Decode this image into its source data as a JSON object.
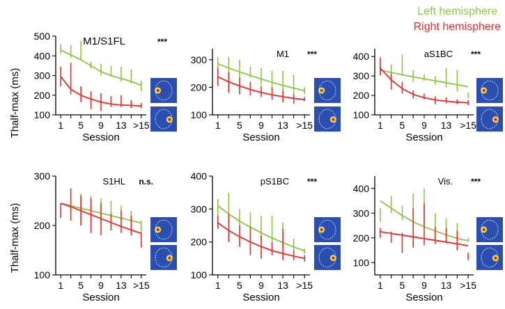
{
  "legend": [
    {
      "label": "Left hemisphere",
      "color": "#8cc63f"
    },
    {
      "label": "Right hemisphere",
      "color": "#ee2a2a"
    }
  ],
  "colors": {
    "left": "#8cc63f",
    "right": "#ee2a2a",
    "map_bg": "#2a4fb0"
  },
  "ylabel": "Thalf-max (ms)",
  "xlabel": "Session",
  "xtick_labels": [
    "1",
    "5",
    "9",
    "13",
    ">15"
  ],
  "chart_data": [
    {
      "type": "line",
      "title": "M1/S1FL",
      "significance": "***",
      "ylim": [
        100,
        500
      ],
      "yticks": [
        100,
        200,
        300,
        400,
        500
      ],
      "x": [
        1,
        3,
        5,
        7,
        9,
        11,
        13,
        15,
        17
      ],
      "series": [
        {
          "name": "Left hemisphere",
          "fit": [
            430,
            405,
            380,
            350,
            320,
            300,
            285,
            270,
            250
          ],
          "errbars": [
            [
              1,
              410,
              460
            ],
            [
              3,
              390,
              455
            ],
            [
              5,
              380,
              475
            ],
            [
              7,
              335,
              370
            ],
            [
              9,
              300,
              360
            ],
            [
              11,
              295,
              350
            ],
            [
              13,
              270,
              345
            ],
            [
              15,
              260,
              330
            ],
            [
              17,
              220,
              275
            ]
          ]
        },
        {
          "name": "Right hemisphere",
          "fit": [
            295,
            230,
            200,
            180,
            165,
            155,
            150,
            148,
            145
          ],
          "errbars": [
            [
              1,
              245,
              345
            ],
            [
              3,
              205,
              365
            ],
            [
              5,
              165,
              245
            ],
            [
              7,
              130,
              220
            ],
            [
              9,
              120,
              210
            ],
            [
              11,
              140,
              195
            ],
            [
              13,
              140,
              200
            ],
            [
              15,
              135,
              175
            ],
            [
              17,
              135,
              160
            ]
          ]
        }
      ]
    },
    {
      "type": "line",
      "title": "M1",
      "significance": "***",
      "ylim": [
        100,
        340
      ],
      "yticks": [
        100,
        200,
        300
      ],
      "x": [
        1,
        3,
        5,
        7,
        9,
        11,
        13,
        15,
        17
      ],
      "series": [
        {
          "name": "Left hemisphere",
          "fit": [
            285,
            270,
            256,
            243,
            230,
            218,
            207,
            197,
            188
          ],
          "errbars": [
            [
              1,
              260,
              310
            ],
            [
              3,
              255,
              310
            ],
            [
              5,
              230,
              300
            ],
            [
              7,
              235,
              275
            ],
            [
              9,
              210,
              270
            ],
            [
              11,
              190,
              260
            ],
            [
              13,
              185,
              260
            ],
            [
              15,
              170,
              245
            ],
            [
              17,
              175,
              200
            ]
          ]
        },
        {
          "name": "Right hemisphere",
          "fit": [
            238,
            220,
            205,
            192,
            181,
            173,
            166,
            160,
            155
          ],
          "errbars": [
            [
              1,
              205,
              270
            ],
            [
              3,
              180,
              255
            ],
            [
              5,
              175,
              235
            ],
            [
              7,
              170,
              220
            ],
            [
              9,
              165,
              205
            ],
            [
              11,
              155,
              200
            ],
            [
              13,
              145,
              190
            ],
            [
              15,
              140,
              175
            ],
            [
              17,
              150,
              165
            ]
          ]
        }
      ]
    },
    {
      "type": "line",
      "title": "aS1BC",
      "significance": "***",
      "ylim": [
        100,
        440
      ],
      "yticks": [
        100,
        200,
        300,
        400
      ],
      "x": [
        1,
        3,
        5,
        7,
        9,
        11,
        13,
        15,
        17
      ],
      "series": [
        {
          "name": "Left hemisphere",
          "fit": [
            330,
            318,
            306,
            295,
            285,
            275,
            265,
            255,
            245
          ],
          "errbars": [
            [
              1,
              300,
              400
            ],
            [
              3,
              280,
              360
            ],
            [
              5,
              300,
              410
            ],
            [
              7,
              270,
              330
            ],
            [
              9,
              275,
              310
            ],
            [
              11,
              255,
              300
            ],
            [
              13,
              240,
              340
            ],
            [
              15,
              220,
              330
            ],
            [
              17,
              185,
              215
            ]
          ]
        },
        {
          "name": "Right hemisphere",
          "fit": [
            340,
            280,
            235,
            205,
            188,
            177,
            170,
            165,
            162
          ],
          "errbars": [
            [
              1,
              305,
              390
            ],
            [
              3,
              230,
              310
            ],
            [
              5,
              210,
              270
            ],
            [
              7,
              185,
              225
            ],
            [
              9,
              180,
              210
            ],
            [
              11,
              155,
              195
            ],
            [
              13,
              160,
              190
            ],
            [
              15,
              155,
              180
            ],
            [
              17,
              150,
              175
            ]
          ]
        }
      ]
    },
    {
      "type": "line",
      "title": "S1HL",
      "significance": "n.s.",
      "ylim": [
        100,
        300
      ],
      "yticks": [
        100,
        200,
        300
      ],
      "x": [
        1,
        3,
        5,
        7,
        9,
        11,
        13,
        15,
        17
      ],
      "series": [
        {
          "name": "Left hemisphere",
          "fit": [
            245,
            240,
            235,
            230,
            225,
            220,
            215,
            210,
            205
          ],
          "errbars": [
            [
              1,
              215,
              245
            ],
            [
              3,
              210,
              260
            ],
            [
              5,
              215,
              265
            ],
            [
              7,
              205,
              260
            ],
            [
              9,
              200,
              255
            ],
            [
              11,
              195,
              250
            ],
            [
              13,
              210,
              240
            ],
            [
              15,
              200,
              230
            ],
            [
              17,
              185,
              210
            ]
          ]
        },
        {
          "name": "Right hemisphere",
          "fit": [
            245,
            238,
            230,
            222,
            214,
            206,
            198,
            191,
            184
          ],
          "errbars": [
            [
              1,
              215,
              245
            ],
            [
              3,
              210,
              275
            ],
            [
              5,
              200,
              260
            ],
            [
              7,
              185,
              255
            ],
            [
              9,
              180,
              245
            ],
            [
              11,
              190,
              225
            ],
            [
              13,
              185,
              230
            ],
            [
              15,
              180,
              220
            ],
            [
              17,
              155,
              185
            ]
          ]
        }
      ]
    },
    {
      "type": "line",
      "title": "pS1BC",
      "significance": "***",
      "ylim": [
        100,
        400
      ],
      "yticks": [
        100,
        200,
        300,
        400
      ],
      "x": [
        1,
        3,
        5,
        7,
        9,
        11,
        13,
        15,
        17
      ],
      "series": [
        {
          "name": "Left hemisphere",
          "fit": [
            310,
            285,
            263,
            245,
            228,
            212,
            198,
            185,
            173
          ],
          "errbars": [
            [
              1,
              270,
              330
            ],
            [
              3,
              280,
              350
            ],
            [
              5,
              250,
              300
            ],
            [
              7,
              220,
              290
            ],
            [
              9,
              200,
              280
            ],
            [
              11,
              180,
              280
            ],
            [
              13,
              180,
              260
            ],
            [
              15,
              170,
              210
            ],
            [
              17,
              165,
              180
            ]
          ]
        },
        {
          "name": "Right hemisphere",
          "fit": [
            258,
            235,
            216,
            200,
            186,
            174,
            165,
            157,
            150
          ],
          "errbars": [
            [
              1,
              240,
              280
            ],
            [
              3,
              200,
              285
            ],
            [
              5,
              185,
              250
            ],
            [
              7,
              160,
              245
            ],
            [
              9,
              150,
              220
            ],
            [
              11,
              160,
              200
            ],
            [
              13,
              145,
              240
            ],
            [
              15,
              145,
              175
            ],
            [
              17,
              140,
              160
            ]
          ]
        }
      ]
    },
    {
      "type": "line",
      "title": "Vis.",
      "significance": "***",
      "ylim": [
        50,
        450
      ],
      "yticks": [
        100,
        200,
        300,
        400
      ],
      "x": [
        1,
        3,
        5,
        7,
        9,
        11,
        13,
        15,
        17
      ],
      "series": [
        {
          "name": "Left hemisphere",
          "fit": [
            350,
            320,
            290,
            265,
            245,
            228,
            212,
            198,
            188
          ],
          "errbars": [
            [
              1,
              265,
              320
            ],
            [
              3,
              300,
              370
            ],
            [
              5,
              270,
              330
            ],
            [
              7,
              240,
              380
            ],
            [
              9,
              250,
              400
            ],
            [
              11,
              220,
              300
            ],
            [
              13,
              195,
              280
            ],
            [
              15,
              190,
              260
            ],
            [
              17,
              185,
              200
            ]
          ]
        },
        {
          "name": "Right hemisphere",
          "fit": [
            225,
            218,
            211,
            204,
            197,
            190,
            183,
            176,
            168
          ],
          "errbars": [
            [
              1,
              200,
              240
            ],
            [
              3,
              180,
              225
            ],
            [
              5,
              140,
              220
            ],
            [
              7,
              160,
              320
            ],
            [
              9,
              170,
              340
            ],
            [
              11,
              175,
              245
            ],
            [
              13,
              180,
              240
            ],
            [
              15,
              150,
              230
            ],
            [
              17,
              110,
              140
            ]
          ]
        }
      ]
    }
  ]
}
